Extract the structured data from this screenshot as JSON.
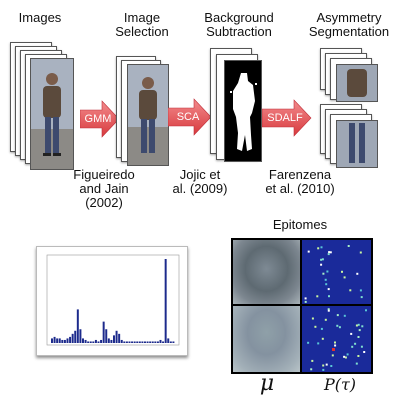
{
  "stages": [
    {
      "label_line1": "Images",
      "label_line2": ""
    },
    {
      "label_line1": "Image",
      "label_line2": "Selection"
    },
    {
      "label_line1": "Background",
      "label_line2": "Subtraction"
    },
    {
      "label_line1": "Asymmetry",
      "label_line2": "Segmentation"
    }
  ],
  "arrows": [
    {
      "label": "GMM"
    },
    {
      "label": "SCA"
    },
    {
      "label": "SDALF"
    }
  ],
  "citations": [
    {
      "line1": "Figueiredo",
      "line2": "and Jain",
      "line3": "(2002)"
    },
    {
      "line1": "Jojic et",
      "line2": "al. (2009)"
    },
    {
      "line1": "Farenzena",
      "line2": "et al. (2010)"
    }
  ],
  "epitomes": {
    "title": "Epitomes",
    "mean_symbol": "μ",
    "prob_symbol": "P(τ)"
  },
  "colors": {
    "arrow": "#e8474a",
    "prob_map_bg": "#1a2a9a",
    "bar": "#1c2a8c"
  },
  "histogram": {
    "values": [
      3,
      4,
      3,
      3,
      2,
      2,
      3,
      4,
      6,
      8,
      22,
      9,
      3,
      2,
      1,
      1,
      1,
      2,
      1,
      2,
      14,
      9,
      3,
      2,
      5,
      8,
      6,
      2,
      1,
      1,
      1,
      1,
      1,
      1,
      1,
      1,
      1,
      1,
      1,
      1,
      1,
      1,
      2,
      1,
      55,
      3,
      1,
      1
    ]
  }
}
